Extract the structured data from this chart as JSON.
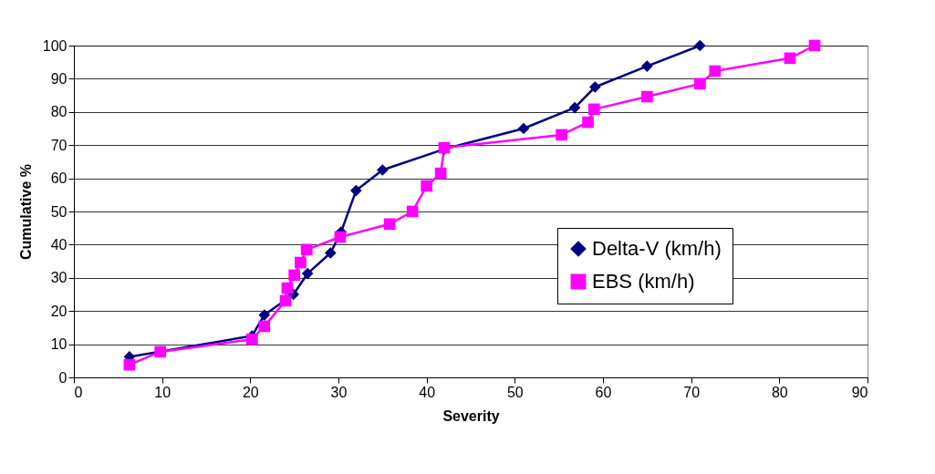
{
  "chart_data": {
    "type": "line",
    "xlabel": "Severity",
    "ylabel": "Cumulative %",
    "xlim": [
      0,
      90
    ],
    "xticks": [
      0,
      10,
      20,
      30,
      40,
      50,
      60,
      70,
      80,
      90
    ],
    "ylim": [
      0,
      100
    ],
    "yticks": [
      0,
      10,
      20,
      30,
      40,
      50,
      60,
      70,
      80,
      90,
      100
    ],
    "grid": "y",
    "legend": "right",
    "series": [
      {
        "name": "Delta-V (km/h)",
        "color": "#000080",
        "marker": "diamond",
        "x": [
          6.3,
          20.2,
          21.6,
          24.9,
          26.5,
          29.1,
          30.3,
          32,
          35,
          42,
          51,
          56.8,
          59.1,
          65,
          71
        ],
        "values": [
          6.2,
          12.5,
          18.8,
          25,
          31.3,
          37.5,
          43.8,
          56.3,
          62.5,
          68.8,
          75,
          81.3,
          87.5,
          93.8,
          100
        ]
      },
      {
        "name": "EBS (km/h)",
        "color": "#ff00ff",
        "marker": "square",
        "x": [
          6.3,
          9.8,
          20.2,
          21.6,
          24,
          24.2,
          25,
          25.7,
          26.4,
          30.2,
          35.8,
          38.4,
          40,
          41.6,
          42,
          55.3,
          58.3,
          59,
          65,
          71,
          72.7,
          81.2,
          84
        ],
        "values": [
          3.8,
          7.7,
          11.5,
          15.4,
          23.1,
          26.9,
          30.8,
          34.6,
          38.5,
          42.3,
          46.2,
          50,
          57.7,
          61.5,
          69.2,
          73.1,
          76.9,
          80.8,
          84.6,
          88.5,
          92.3,
          96.2,
          100
        ]
      }
    ]
  }
}
